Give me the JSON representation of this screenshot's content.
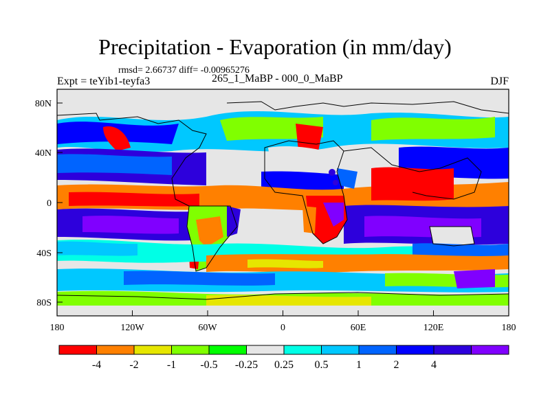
{
  "title": "Precipitation - Evaporation (in mm/day)",
  "stats": "rmsd= 2.66737 diff= -0.00965276",
  "expt": "Expt = teYib1-teyfa3",
  "case": "265_1_MaBP - 000_0_MaBP",
  "season": "DJF",
  "y_ticks": [
    "80N",
    "40N",
    "0",
    "40S",
    "80S"
  ],
  "x_ticks": [
    "180",
    "120W",
    "60W",
    "0",
    "60E",
    "120E",
    "180"
  ],
  "colorbar": {
    "colors": [
      "#ff0000",
      "#ff8000",
      "#e6e600",
      "#80ff00",
      "#00ff00",
      "#e6e6e6",
      "#00ffe6",
      "#00c8ff",
      "#0064ff",
      "#0000ff",
      "#2d00dc",
      "#8000ff"
    ],
    "labels": [
      "-4",
      "-2",
      "-1",
      "-0.5",
      "-0.25",
      "0.25",
      "0.5",
      "1",
      "2",
      "4"
    ]
  }
}
